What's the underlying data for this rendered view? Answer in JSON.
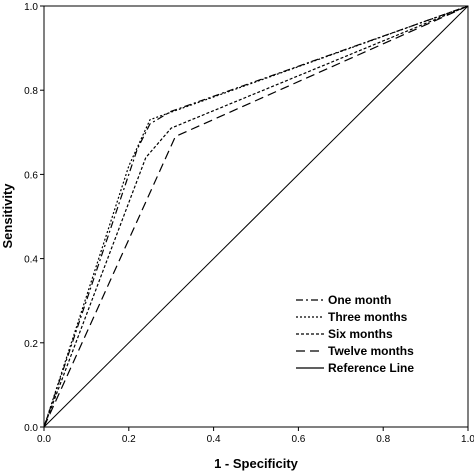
{
  "chart_data": {
    "type": "line",
    "xlabel": "1 - Specificity",
    "ylabel": "Sensitivity",
    "xlim": [
      0,
      1
    ],
    "ylim": [
      0,
      1
    ],
    "x_ticks": [
      "0.0",
      "0.2",
      "0.4",
      "0.6",
      "0.8",
      "1.0"
    ],
    "y_ticks": [
      "0.0",
      "0.2",
      "0.4",
      "0.6",
      "0.8",
      "1.0"
    ],
    "grid": false,
    "legend_position": "bottom-right",
    "series": [
      {
        "name": "One month",
        "dash": "dash-dot",
        "x": [
          0,
          0.22,
          0.25,
          0.3,
          1.0
        ],
        "y": [
          0,
          0.66,
          0.72,
          0.75,
          1.0
        ]
      },
      {
        "name": "Three months",
        "dash": "dotted",
        "x": [
          0,
          0.2,
          0.25,
          1.0
        ],
        "y": [
          0,
          0.62,
          0.73,
          1.0
        ]
      },
      {
        "name": "Six months",
        "dash": "short-dash",
        "x": [
          0,
          0.24,
          0.3,
          1.0
        ],
        "y": [
          0,
          0.64,
          0.71,
          1.0
        ]
      },
      {
        "name": "Twelve months",
        "dash": "long-dash",
        "x": [
          0,
          0.31,
          1.0
        ],
        "y": [
          0,
          0.69,
          1.0
        ]
      },
      {
        "name": "Reference Line",
        "dash": "solid",
        "x": [
          0,
          1.0
        ],
        "y": [
          0,
          1.0
        ]
      }
    ]
  }
}
